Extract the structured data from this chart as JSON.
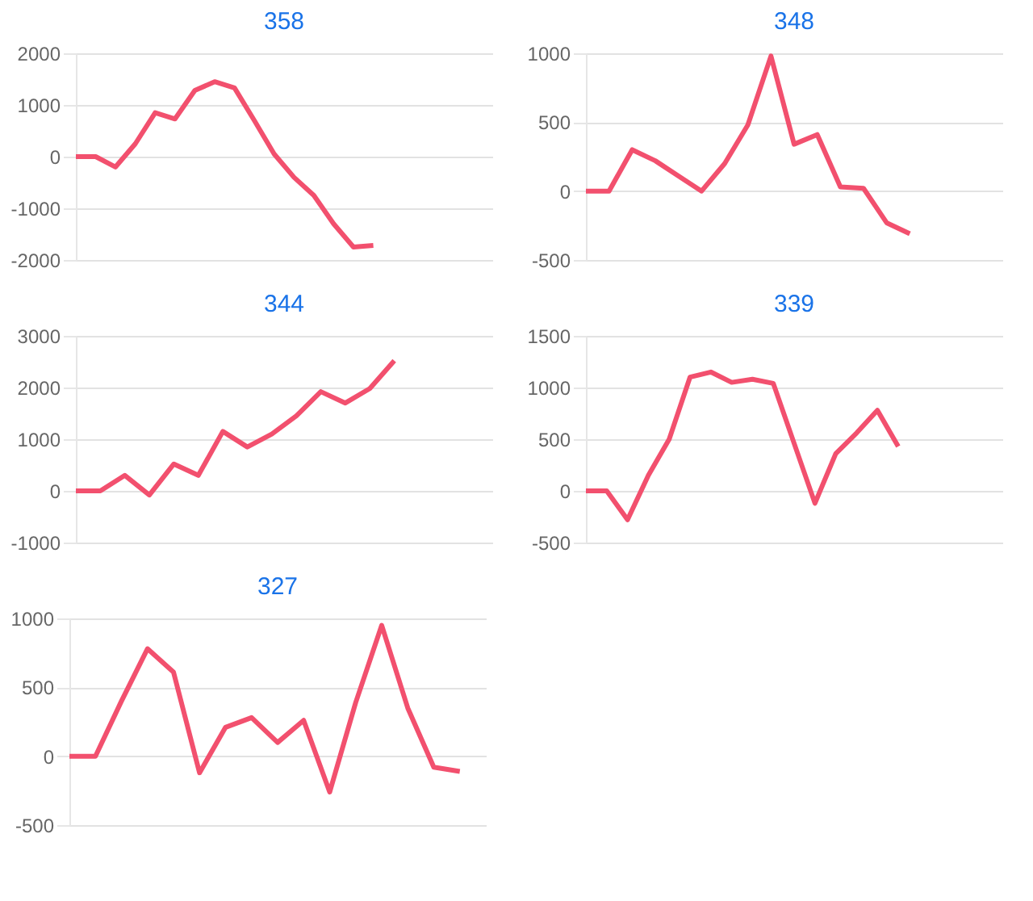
{
  "chart_data": [
    {
      "type": "line",
      "title": "358",
      "categories": [
        null,
        null,
        null,
        null,
        null,
        null,
        null,
        null,
        null,
        null,
        null,
        null,
        null,
        null,
        null,
        null,
        null,
        null,
        null,
        null,
        null,
        null
      ],
      "series": [
        {
          "color": "#f2506e",
          "values": [
            0,
            0,
            -200,
            250,
            850,
            730,
            1280,
            1450,
            1330,
            700,
            50,
            -400,
            -750,
            -1300,
            -1750,
            -1720,
            null,
            null,
            null,
            null,
            null,
            null
          ]
        }
      ],
      "ylim": [
        -2000,
        2000
      ],
      "yticks": [
        -2000,
        -1000,
        0,
        1000,
        2000
      ],
      "grid": "y",
      "tick_labels": "y"
    },
    {
      "type": "line",
      "title": "348",
      "categories": [
        null,
        null,
        null,
        null,
        null,
        null,
        null,
        null,
        null,
        null,
        null,
        null,
        null,
        null,
        null,
        null,
        null,
        null,
        null
      ],
      "series": [
        {
          "color": "#f2506e",
          "values": [
            0,
            0,
            300,
            220,
            110,
            0,
            200,
            480,
            980,
            340,
            410,
            30,
            20,
            -230,
            -310,
            null,
            null,
            null,
            null
          ]
        }
      ],
      "ylim": [
        -500,
        1000
      ],
      "yticks": [
        -500,
        0,
        500,
        1000
      ],
      "grid": "y",
      "tick_labels": "y"
    },
    {
      "type": "line",
      "title": "344",
      "categories": [
        null,
        null,
        null,
        null,
        null,
        null,
        null,
        null,
        null,
        null,
        null,
        null,
        null,
        null,
        null,
        null,
        null,
        null
      ],
      "series": [
        {
          "color": "#f2506e",
          "values": [
            0,
            0,
            300,
            -80,
            520,
            300,
            1150,
            850,
            1100,
            1450,
            1920,
            1700,
            1980,
            2520,
            null,
            null,
            null,
            null
          ]
        }
      ],
      "ylim": [
        -1000,
        3000
      ],
      "yticks": [
        -1000,
        0,
        1000,
        2000,
        3000
      ],
      "grid": "y",
      "tick_labels": "y"
    },
    {
      "type": "line",
      "title": "339",
      "categories": [
        null,
        null,
        null,
        null,
        null,
        null,
        null,
        null,
        null,
        null,
        null,
        null,
        null,
        null,
        null,
        null,
        null,
        null,
        null,
        null,
        null
      ],
      "series": [
        {
          "color": "#f2506e",
          "values": [
            0,
            0,
            -280,
            150,
            500,
            1100,
            1150,
            1050,
            1080,
            1040,
            460,
            -120,
            360,
            560,
            780,
            430,
            null,
            null,
            null,
            null,
            null
          ]
        }
      ],
      "ylim": [
        -500,
        1500
      ],
      "yticks": [
        -500,
        0,
        500,
        1000,
        1500
      ],
      "grid": "y",
      "tick_labels": "y"
    },
    {
      "type": "line",
      "title": "327",
      "categories": [
        null,
        null,
        null,
        null,
        null,
        null,
        null,
        null,
        null,
        null,
        null,
        null,
        null,
        null,
        null,
        null,
        null
      ],
      "series": [
        {
          "color": "#f2506e",
          "values": [
            0,
            0,
            400,
            780,
            610,
            -120,
            210,
            280,
            100,
            260,
            -260,
            390,
            950,
            350,
            -80,
            -110,
            null
          ]
        }
      ],
      "ylim": [
        -500,
        1000
      ],
      "yticks": [
        -500,
        0,
        500,
        1000
      ],
      "grid": "y",
      "tick_labels": "y"
    }
  ]
}
